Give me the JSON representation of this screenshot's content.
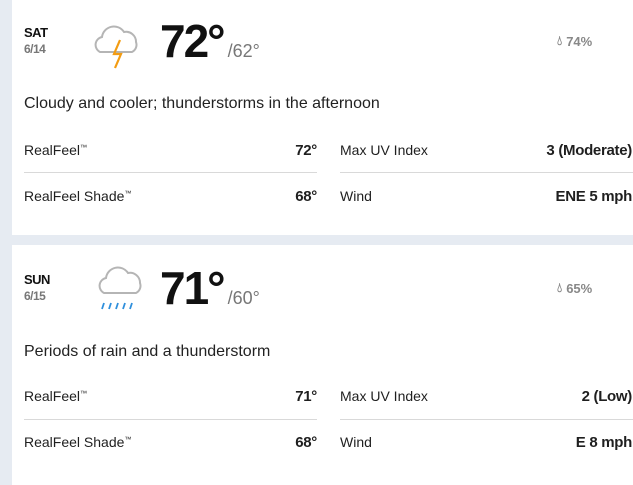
{
  "days": [
    {
      "day": "SAT",
      "date": "6/14",
      "icon": "thunderstorm-cloud-icon",
      "high": "72°",
      "low": "/62°",
      "precip": "74%",
      "description": "Cloudy and cooler; thunderstorms in the afternoon",
      "realfeel_label": "RealFeel",
      "realfeel": "72°",
      "realfeel_shade_label": "RealFeel Shade",
      "realfeel_shade": "68°",
      "uv_label": "Max UV Index",
      "uv": "3 (Moderate)",
      "wind_label": "Wind",
      "wind": "ENE 5 mph"
    },
    {
      "day": "SUN",
      "date": "6/15",
      "icon": "rain-cloud-icon",
      "high": "71°",
      "low": "/60°",
      "precip": "65%",
      "description": "Periods of rain and a thunderstorm",
      "realfeel_label": "RealFeel",
      "realfeel": "71°",
      "realfeel_shade_label": "RealFeel Shade",
      "realfeel_shade": "68°",
      "uv_label": "Max UV Index",
      "uv": "2 (Low)",
      "wind_label": "Wind",
      "wind": "E 8 mph"
    }
  ],
  "trademark": "™",
  "colors": {
    "lightning": "#f39c12",
    "rain": "#2f8fdc",
    "cloud": "#b5b5b5",
    "background": "#e6ebf2"
  }
}
